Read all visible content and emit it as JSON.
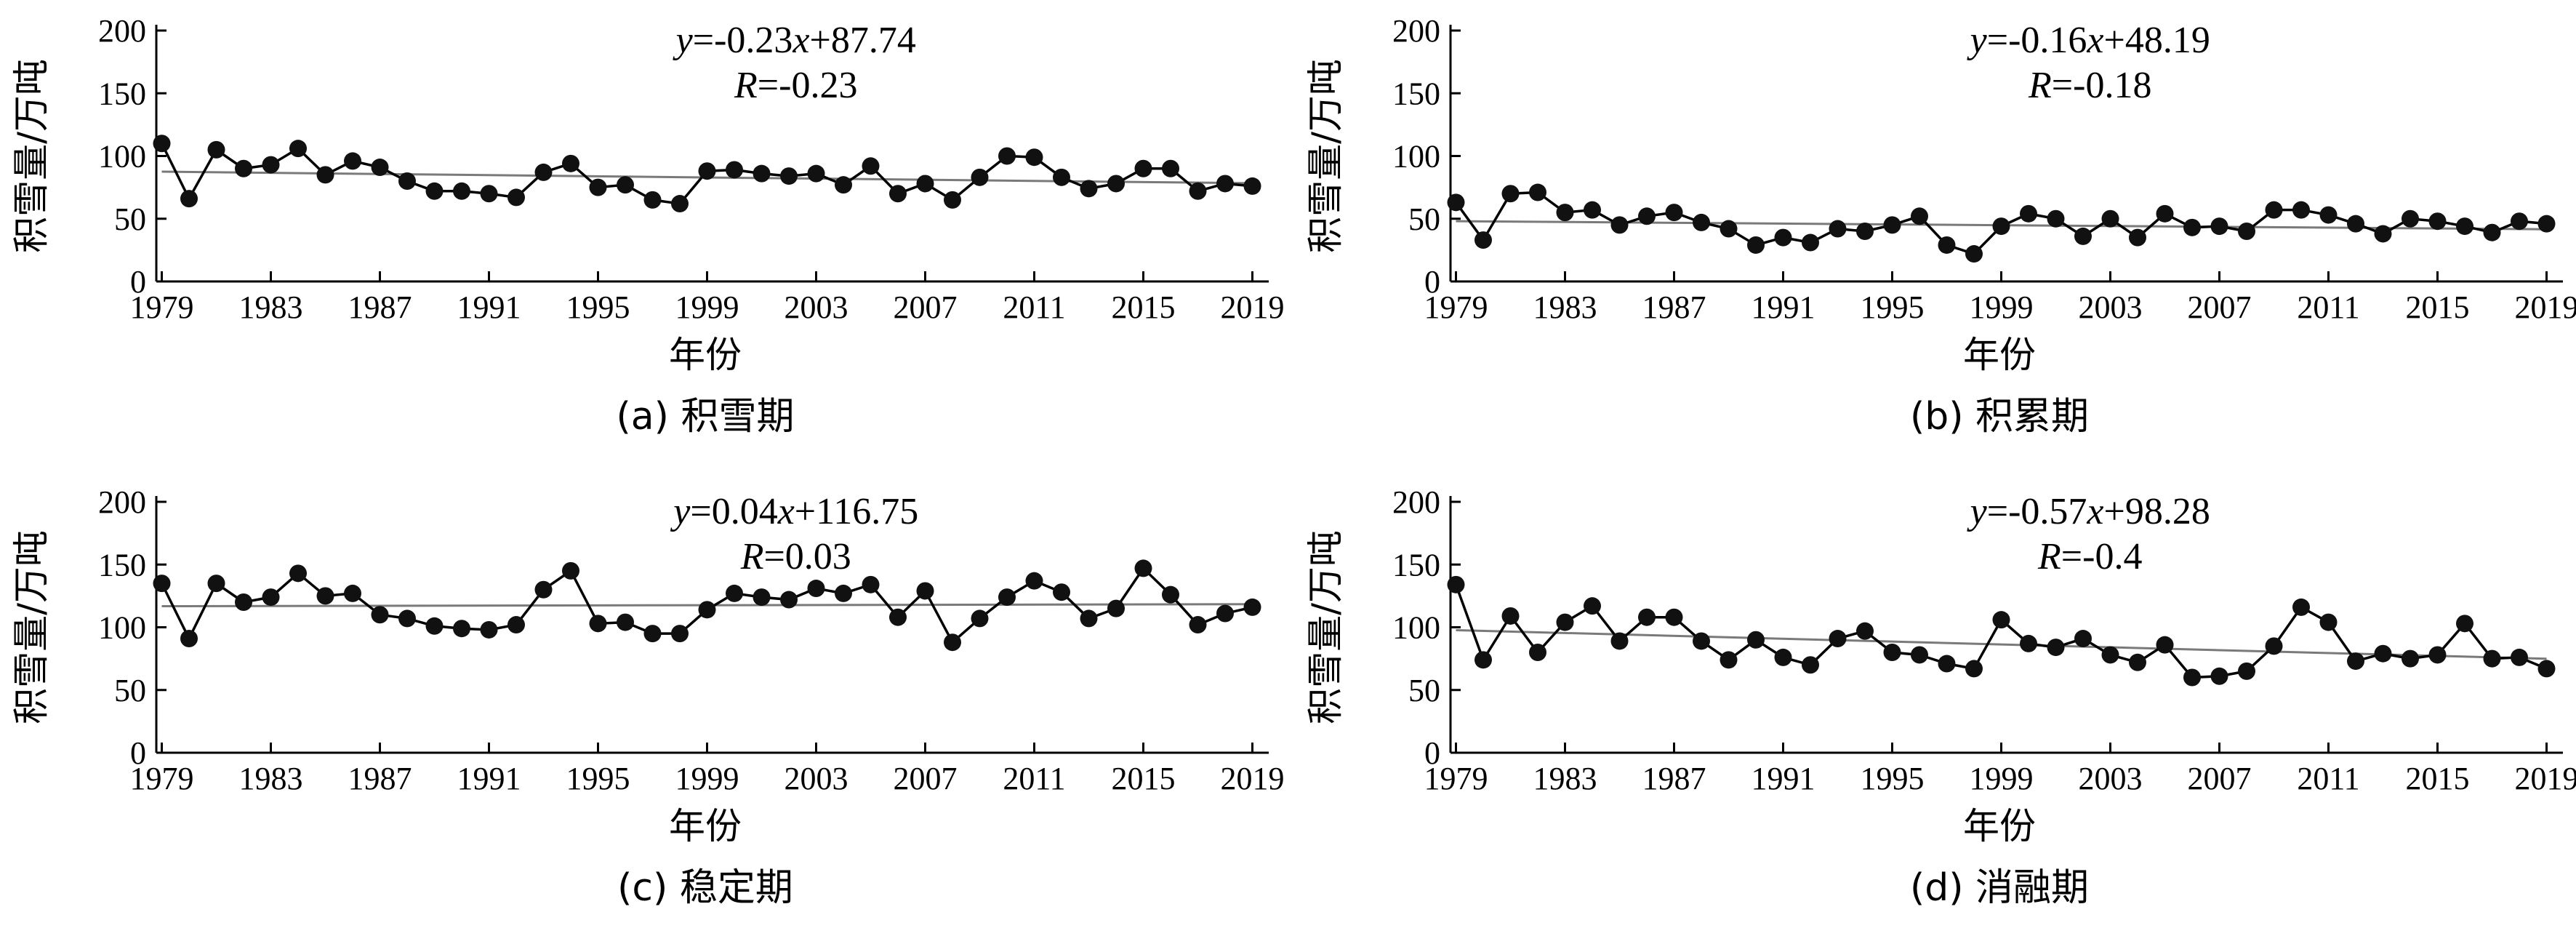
{
  "chart_data": [
    {
      "type": "line",
      "caption": "(a) 积雪期",
      "xlabel": "年份",
      "ylabel": "积雪量/万吨",
      "ylim": [
        0,
        200
      ],
      "yticks": [
        "0",
        "50",
        "100",
        "150",
        "200"
      ],
      "xticks": [
        "1979",
        "1983",
        "1987",
        "1991",
        "1995",
        "1999",
        "2003",
        "2007",
        "2011",
        "2015",
        "2019"
      ],
      "equation": "y=-0.23x+87.74",
      "r_label": "R=-0.23",
      "trend": {
        "slope": -0.23,
        "intercept": 87.74
      },
      "x": [
        1979,
        1980,
        1981,
        1982,
        1983,
        1984,
        1985,
        1986,
        1987,
        1988,
        1989,
        1990,
        1991,
        1992,
        1993,
        1994,
        1995,
        1996,
        1997,
        1998,
        1999,
        2000,
        2001,
        2002,
        2003,
        2004,
        2005,
        2006,
        2007,
        2008,
        2009,
        2010,
        2011,
        2012,
        2013,
        2014,
        2015,
        2016,
        2017,
        2018,
        2019
      ],
      "values": [
        110,
        66,
        105,
        90,
        93,
        106,
        85,
        96,
        91,
        80,
        72,
        72,
        70,
        67,
        87,
        94,
        75,
        77,
        65,
        62,
        88,
        89,
        86,
        84,
        86,
        77,
        92,
        70,
        78,
        65,
        83,
        100,
        99,
        83,
        74,
        78,
        90,
        90,
        72,
        78,
        76
      ]
    },
    {
      "type": "line",
      "caption": "(b) 积累期",
      "xlabel": "年份",
      "ylabel": "积雪量/万吨",
      "ylim": [
        0,
        200
      ],
      "yticks": [
        "0",
        "50",
        "100",
        "150",
        "200"
      ],
      "xticks": [
        "1979",
        "1983",
        "1987",
        "1991",
        "1995",
        "1999",
        "2003",
        "2007",
        "2011",
        "2015",
        "2019"
      ],
      "equation": "y=-0.16x+48.19",
      "r_label": "R=-0.18",
      "trend": {
        "slope": -0.16,
        "intercept": 48.19
      },
      "x": [
        1979,
        1980,
        1981,
        1982,
        1983,
        1984,
        1985,
        1986,
        1987,
        1988,
        1989,
        1990,
        1991,
        1992,
        1993,
        1994,
        1995,
        1996,
        1997,
        1998,
        1999,
        2000,
        2001,
        2002,
        2003,
        2004,
        2005,
        2006,
        2007,
        2008,
        2009,
        2010,
        2011,
        2012,
        2013,
        2014,
        2015,
        2016,
        2017,
        2018,
        2019
      ],
      "values": [
        63,
        33,
        70,
        71,
        55,
        57,
        45,
        52,
        55,
        47,
        42,
        29,
        35,
        31,
        42,
        40,
        45,
        52,
        29,
        22,
        44,
        54,
        50,
        36,
        50,
        35,
        54,
        43,
        44,
        40,
        57,
        57,
        53,
        46,
        38,
        50,
        48,
        44,
        39,
        48,
        46
      ]
    },
    {
      "type": "line",
      "caption": "(c) 稳定期",
      "xlabel": "年份",
      "ylabel": "积雪量/万吨",
      "ylim": [
        0,
        200
      ],
      "yticks": [
        "0",
        "50",
        "100",
        "150",
        "200"
      ],
      "xticks": [
        "1979",
        "1983",
        "1987",
        "1991",
        "1995",
        "1999",
        "2003",
        "2007",
        "2011",
        "2015",
        "2019"
      ],
      "equation": "y=0.04x+116.75",
      "r_label": "R=0.03",
      "trend": {
        "slope": 0.04,
        "intercept": 116.75
      },
      "x": [
        1979,
        1980,
        1981,
        1982,
        1983,
        1984,
        1985,
        1986,
        1987,
        1988,
        1989,
        1990,
        1991,
        1992,
        1993,
        1994,
        1995,
        1996,
        1997,
        1998,
        1999,
        2000,
        2001,
        2002,
        2003,
        2004,
        2005,
        2006,
        2007,
        2008,
        2009,
        2010,
        2011,
        2012,
        2013,
        2014,
        2015,
        2016,
        2017,
        2018,
        2019
      ],
      "values": [
        135,
        91,
        135,
        120,
        124,
        143,
        125,
        127,
        110,
        107,
        101,
        99,
        98,
        102,
        130,
        145,
        103,
        104,
        95,
        95,
        114,
        127,
        124,
        122,
        131,
        127,
        134,
        108,
        129,
        88,
        107,
        124,
        137,
        128,
        107,
        115,
        147,
        126,
        102,
        111,
        116
      ]
    },
    {
      "type": "line",
      "caption": "(d) 消融期",
      "xlabel": "年份",
      "ylabel": "积雪量/万吨",
      "ylim": [
        0,
        200
      ],
      "yticks": [
        "0",
        "50",
        "100",
        "150",
        "200"
      ],
      "xticks": [
        "1979",
        "1983",
        "1987",
        "1991",
        "1995",
        "1999",
        "2003",
        "2007",
        "2011",
        "2015",
        "2019"
      ],
      "equation": "y=-0.57x+98.28",
      "r_label": "R=-0.4",
      "trend": {
        "slope": -0.57,
        "intercept": 98.28
      },
      "x": [
        1979,
        1980,
        1981,
        1982,
        1983,
        1984,
        1985,
        1986,
        1987,
        1988,
        1989,
        1990,
        1991,
        1992,
        1993,
        1994,
        1995,
        1996,
        1997,
        1998,
        1999,
        2000,
        2001,
        2002,
        2003,
        2004,
        2005,
        2006,
        2007,
        2008,
        2009,
        2010,
        2011,
        2012,
        2013,
        2014,
        2015,
        2016,
        2017,
        2018,
        2019
      ],
      "values": [
        134,
        74,
        109,
        80,
        104,
        117,
        89,
        108,
        108,
        89,
        74,
        90,
        76,
        70,
        91,
        97,
        80,
        78,
        71,
        67,
        106,
        87,
        84,
        91,
        78,
        72,
        86,
        60,
        61,
        65,
        85,
        116,
        104,
        73,
        79,
        75,
        78,
        103,
        75,
        76,
        67
      ]
    }
  ]
}
